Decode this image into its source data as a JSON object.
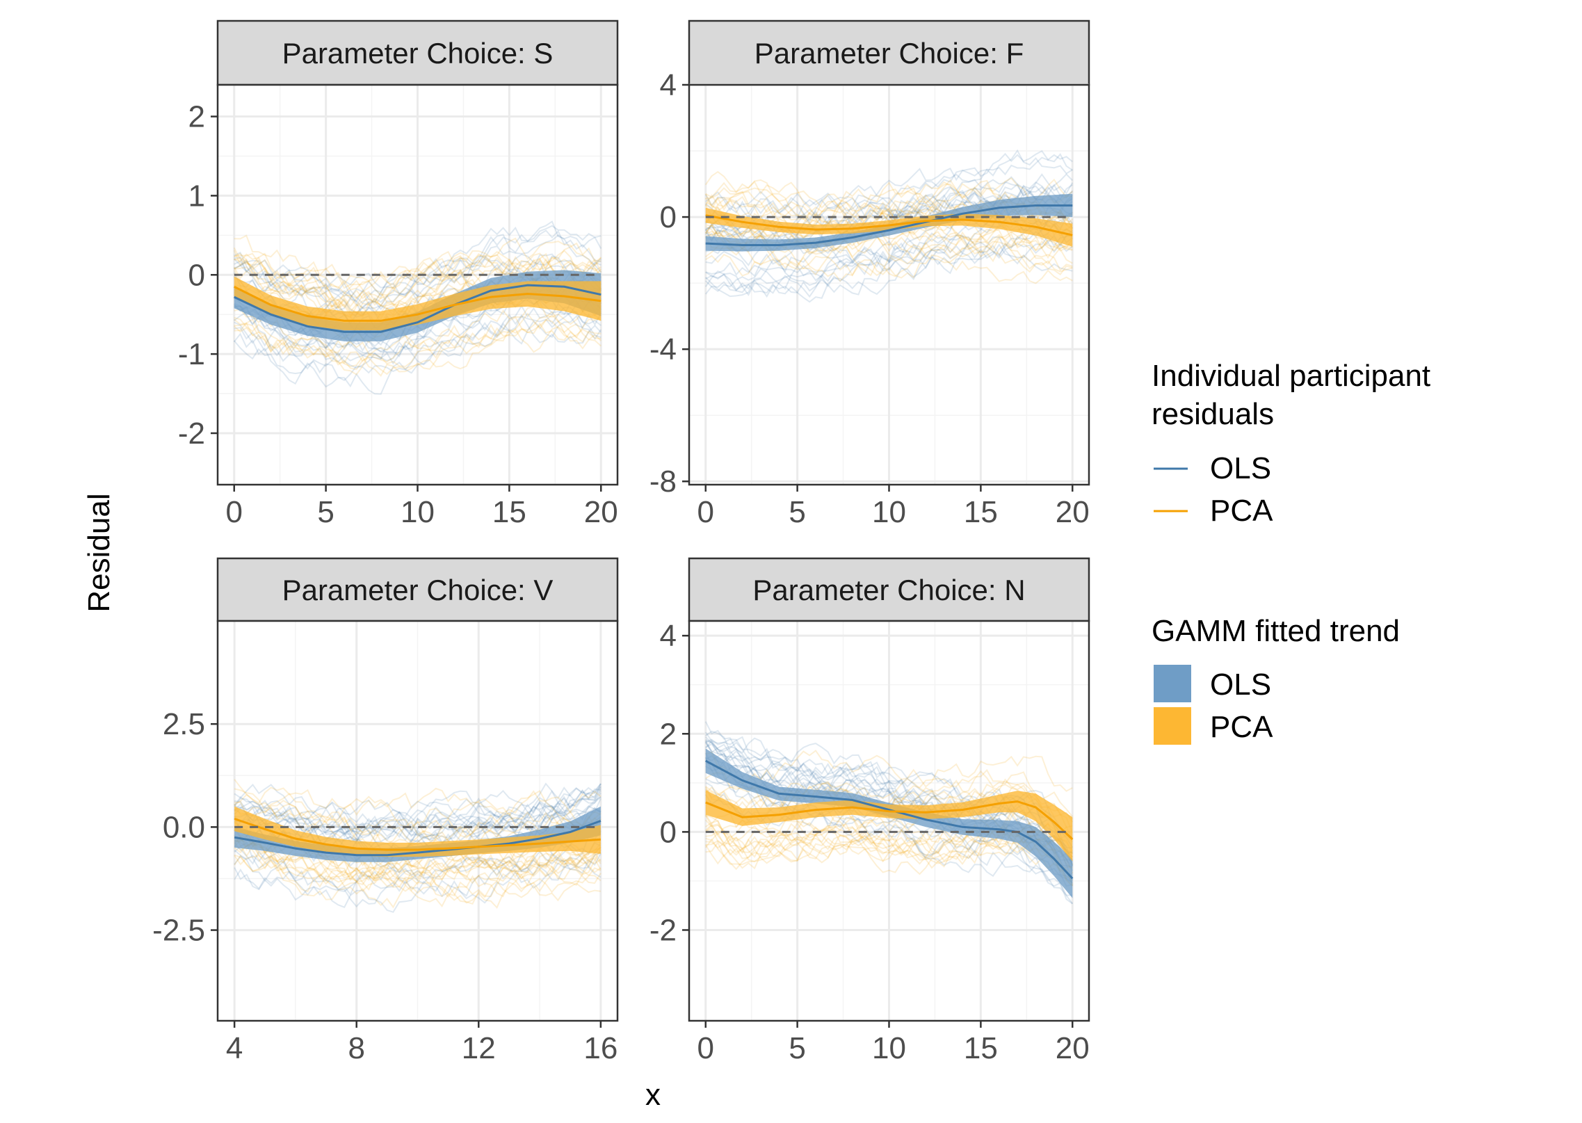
{
  "chart_data": {
    "type": "line",
    "xlabel": "x",
    "ylabel": "Residual",
    "colors": {
      "OLS_line": "#3F78AA",
      "OLS_ribbon": "#6F9DC6",
      "PCA_line": "#F5A000",
      "PCA_ribbon": "#FDB733",
      "strip_bg": "#D9D9D9",
      "grid_major": "#EBEBEB",
      "grid_minor": "#F4F4F4"
    },
    "legend": {
      "position": "right",
      "individual": {
        "title": "Individual participant residuals",
        "title_lines": [
          "Individual participant",
          "residuals"
        ],
        "entries": [
          "OLS",
          "PCA"
        ]
      },
      "gamm": {
        "title": "GAMM fitted trend",
        "entries": [
          "OLS",
          "PCA"
        ]
      }
    },
    "reference_line_y": 0,
    "panels": [
      {
        "strip": "Parameter Choice: S",
        "xlim": [
          -0.9,
          20.9
        ],
        "ylim": [
          -2.65,
          2.4
        ],
        "xticks": [
          0,
          5,
          10,
          15,
          20
        ],
        "xtick_labels": [
          "0",
          "5",
          "10",
          "15",
          "20"
        ],
        "yticks": [
          -2,
          -1,
          0,
          1,
          2
        ],
        "ytick_labels": [
          "-2",
          "-1",
          "0",
          "1",
          "2"
        ],
        "x": [
          0,
          2,
          4,
          6,
          8,
          10,
          12,
          14,
          16,
          18,
          20
        ],
        "series": [
          {
            "name": "OLS",
            "fit": [
              -0.28,
              -0.5,
              -0.65,
              -0.72,
              -0.72,
              -0.6,
              -0.38,
              -0.2,
              -0.13,
              -0.15,
              -0.25
            ],
            "lower": [
              -0.42,
              -0.63,
              -0.77,
              -0.84,
              -0.84,
              -0.73,
              -0.52,
              -0.36,
              -0.3,
              -0.36,
              -0.52
            ],
            "upper": [
              -0.14,
              -0.37,
              -0.53,
              -0.6,
              -0.6,
              -0.47,
              -0.24,
              -0.04,
              0.04,
              0.06,
              0.02
            ]
          },
          {
            "name": "PCA",
            "fit": [
              -0.15,
              -0.38,
              -0.52,
              -0.58,
              -0.58,
              -0.5,
              -0.38,
              -0.28,
              -0.24,
              -0.27,
              -0.33
            ],
            "lower": [
              -0.28,
              -0.5,
              -0.64,
              -0.7,
              -0.7,
              -0.63,
              -0.52,
              -0.43,
              -0.4,
              -0.46,
              -0.58
            ],
            "upper": [
              -0.02,
              -0.26,
              -0.4,
              -0.46,
              -0.46,
              -0.37,
              -0.24,
              -0.13,
              -0.08,
              -0.08,
              -0.08
            ]
          }
        ]
      },
      {
        "strip": "Parameter Choice: F",
        "xlim": [
          -0.9,
          20.9
        ],
        "ylim": [
          -8.1,
          4.0
        ],
        "xticks": [
          0,
          5,
          10,
          15,
          20
        ],
        "xtick_labels": [
          "0",
          "5",
          "10",
          "15",
          "20"
        ],
        "yticks": [
          -8,
          -4,
          0,
          4
        ],
        "ytick_labels": [
          "-8",
          "-4",
          "0",
          "4"
        ],
        "x": [
          0,
          2,
          4,
          6,
          8,
          10,
          12,
          14,
          16,
          18,
          20
        ],
        "series": [
          {
            "name": "OLS",
            "fit": [
              -0.8,
              -0.85,
              -0.85,
              -0.78,
              -0.62,
              -0.4,
              -0.15,
              0.1,
              0.28,
              0.35,
              0.35
            ],
            "lower": [
              -1.02,
              -1.04,
              -1.02,
              -0.94,
              -0.78,
              -0.56,
              -0.32,
              -0.1,
              0.04,
              0.06,
              0.0
            ],
            "upper": [
              -0.58,
              -0.66,
              -0.68,
              -0.62,
              -0.46,
              -0.24,
              0.02,
              0.3,
              0.52,
              0.64,
              0.7
            ]
          },
          {
            "name": "PCA",
            "fit": [
              0.05,
              -0.15,
              -0.3,
              -0.38,
              -0.35,
              -0.25,
              -0.12,
              -0.08,
              -0.15,
              -0.3,
              -0.55
            ],
            "lower": [
              -0.18,
              -0.33,
              -0.46,
              -0.53,
              -0.5,
              -0.4,
              -0.28,
              -0.26,
              -0.36,
              -0.56,
              -0.9
            ],
            "upper": [
              0.28,
              0.03,
              -0.14,
              -0.23,
              -0.2,
              -0.1,
              0.04,
              0.1,
              0.06,
              -0.04,
              -0.2
            ]
          }
        ]
      },
      {
        "strip": "Parameter Choice: V",
        "xlim": [
          3.45,
          16.55
        ],
        "ylim": [
          -4.7,
          5.0
        ],
        "xticks": [
          4,
          8,
          12,
          16
        ],
        "xtick_labels": [
          "4",
          "8",
          "12",
          "16"
        ],
        "yticks": [
          -2.5,
          0,
          2.5
        ],
        "ytick_labels": [
          "-2.5",
          "0.0",
          "2.5"
        ],
        "x": [
          4,
          5,
          6,
          7,
          8,
          9,
          10,
          11,
          12,
          13,
          14,
          15,
          16
        ],
        "series": [
          {
            "name": "OLS",
            "fit": [
              -0.25,
              -0.38,
              -0.52,
              -0.62,
              -0.68,
              -0.68,
              -0.62,
              -0.55,
              -0.48,
              -0.4,
              -0.28,
              -0.12,
              0.15
            ],
            "lower": [
              -0.5,
              -0.58,
              -0.7,
              -0.8,
              -0.85,
              -0.85,
              -0.78,
              -0.71,
              -0.64,
              -0.58,
              -0.5,
              -0.38,
              -0.2
            ],
            "upper": [
              0.0,
              -0.18,
              -0.34,
              -0.44,
              -0.51,
              -0.51,
              -0.46,
              -0.39,
              -0.32,
              -0.22,
              -0.06,
              0.14,
              0.5
            ]
          },
          {
            "name": "PCA",
            "fit": [
              0.2,
              -0.05,
              -0.28,
              -0.42,
              -0.52,
              -0.55,
              -0.55,
              -0.52,
              -0.48,
              -0.44,
              -0.4,
              -0.35,
              -0.3
            ],
            "lower": [
              -0.1,
              -0.3,
              -0.48,
              -0.6,
              -0.7,
              -0.72,
              -0.72,
              -0.7,
              -0.66,
              -0.63,
              -0.6,
              -0.58,
              -0.65
            ],
            "upper": [
              0.5,
              0.2,
              -0.08,
              -0.24,
              -0.34,
              -0.38,
              -0.38,
              -0.34,
              -0.3,
              -0.25,
              -0.2,
              -0.12,
              0.05
            ]
          }
        ]
      },
      {
        "strip": "Parameter Choice: N",
        "xlim": [
          -0.9,
          20.9
        ],
        "ylim": [
          -3.85,
          4.3
        ],
        "xticks": [
          0,
          5,
          10,
          15,
          20
        ],
        "xtick_labels": [
          "0",
          "5",
          "10",
          "15",
          "20"
        ],
        "yticks": [
          -2,
          0,
          2,
          4
        ],
        "ytick_labels": [
          "-2",
          "0",
          "2",
          "4"
        ],
        "x": [
          0,
          2,
          4,
          6,
          8,
          10,
          12,
          14,
          16,
          17,
          18,
          19,
          20
        ],
        "series": [
          {
            "name": "OLS",
            "fit": [
              1.45,
              1.05,
              0.78,
              0.72,
              0.65,
              0.45,
              0.25,
              0.1,
              0.05,
              0.0,
              -0.2,
              -0.55,
              -0.95
            ],
            "lower": [
              1.2,
              0.88,
              0.64,
              0.58,
              0.51,
              0.31,
              0.1,
              -0.06,
              -0.14,
              -0.22,
              -0.5,
              -0.9,
              -1.35
            ],
            "upper": [
              1.7,
              1.22,
              0.92,
              0.86,
              0.79,
              0.59,
              0.4,
              0.26,
              0.24,
              0.22,
              0.1,
              -0.2,
              -0.55
            ]
          },
          {
            "name": "PCA",
            "fit": [
              0.6,
              0.3,
              0.35,
              0.45,
              0.5,
              0.42,
              0.4,
              0.45,
              0.58,
              0.62,
              0.5,
              0.2,
              -0.15
            ],
            "lower": [
              0.35,
              0.12,
              0.2,
              0.3,
              0.35,
              0.28,
              0.26,
              0.3,
              0.4,
              0.4,
              0.22,
              -0.15,
              -0.6
            ],
            "upper": [
              0.85,
              0.48,
              0.5,
              0.6,
              0.65,
              0.56,
              0.54,
              0.6,
              0.76,
              0.84,
              0.78,
              0.55,
              0.3
            ]
          }
        ]
      }
    ]
  }
}
